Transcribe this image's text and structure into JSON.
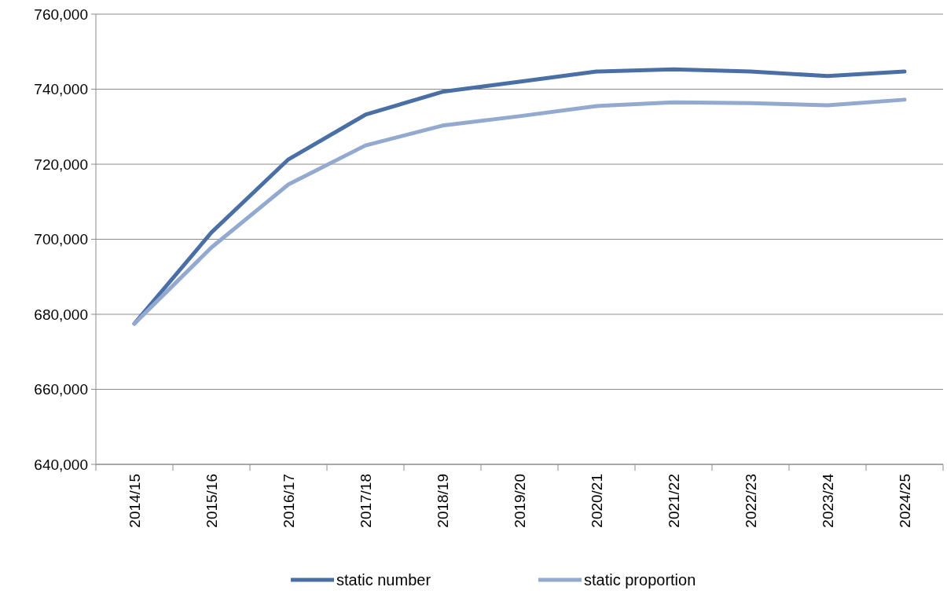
{
  "chart_data": {
    "type": "line",
    "categories": [
      "2014/15",
      "2015/16",
      "2016/17",
      "2017/18",
      "2018/19",
      "2019/20",
      "2020/21",
      "2021/22",
      "2022/23",
      "2023/24",
      "2024/25"
    ],
    "series": [
      {
        "name": "static number",
        "color": "#4a6fa5",
        "values": [
          677500,
          701800,
          721300,
          733200,
          739300,
          742000,
          744700,
          745300,
          744700,
          743500,
          744700
        ]
      },
      {
        "name": "static proportion",
        "color": "#93a9d0",
        "values": [
          677500,
          697800,
          714600,
          725000,
          730300,
          732800,
          735500,
          736500,
          736300,
          735700,
          737200
        ]
      }
    ],
    "ylim": [
      640000,
      760000
    ],
    "yticks": [
      {
        "value": 640000,
        "label": "640,000"
      },
      {
        "value": 660000,
        "label": "660,000"
      },
      {
        "value": 680000,
        "label": "680,000"
      },
      {
        "value": 700000,
        "label": "700,000"
      },
      {
        "value": 720000,
        "label": "720,000"
      },
      {
        "value": 740000,
        "label": "740,000"
      },
      {
        "value": 760000,
        "label": "760,000"
      }
    ],
    "grid": "y",
    "legend": "bottom",
    "marker": "none",
    "line_style": "solid"
  }
}
